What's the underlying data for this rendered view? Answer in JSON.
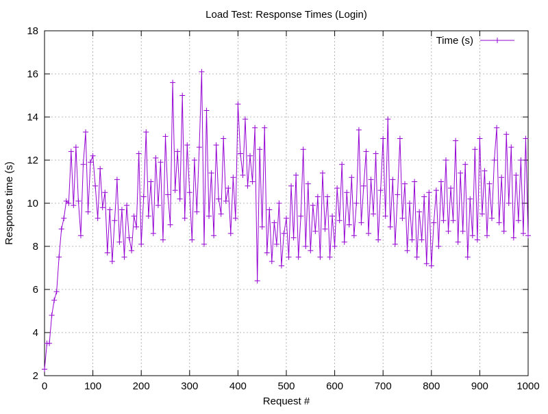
{
  "chart_data": {
    "type": "line",
    "title": "Load Test: Response Times (Login)",
    "x_label": "Request #",
    "y_label": "Response time (s)",
    "xlim": [
      0,
      1000
    ],
    "xticks": [
      0,
      100,
      200,
      300,
      400,
      500,
      600,
      700,
      800,
      900,
      1000
    ],
    "ylim": [
      2,
      18
    ],
    "yticks": [
      2,
      4,
      6,
      8,
      10,
      12,
      14,
      16,
      18
    ],
    "grid": true,
    "legend": "top right",
    "x": [
      0,
      5,
      10,
      15,
      20,
      25,
      30,
      35,
      40,
      45,
      50,
      55,
      60,
      65,
      70,
      75,
      80,
      85,
      90,
      95,
      100,
      105,
      110,
      115,
      120,
      125,
      130,
      135,
      140,
      145,
      150,
      155,
      160,
      165,
      170,
      175,
      180,
      185,
      190,
      195,
      200,
      205,
      210,
      215,
      220,
      225,
      230,
      235,
      240,
      245,
      250,
      255,
      260,
      265,
      270,
      275,
      280,
      285,
      290,
      295,
      300,
      305,
      310,
      315,
      320,
      325,
      330,
      335,
      340,
      345,
      350,
      355,
      360,
      365,
      370,
      375,
      380,
      385,
      390,
      395,
      400,
      405,
      410,
      415,
      420,
      425,
      430,
      435,
      440,
      445,
      450,
      455,
      460,
      465,
      470,
      475,
      480,
      485,
      490,
      495,
      500,
      505,
      510,
      515,
      520,
      525,
      530,
      535,
      540,
      545,
      550,
      555,
      560,
      565,
      570,
      575,
      580,
      585,
      590,
      595,
      600,
      605,
      610,
      615,
      620,
      625,
      630,
      635,
      640,
      645,
      650,
      655,
      660,
      665,
      670,
      675,
      680,
      685,
      690,
      695,
      700,
      705,
      710,
      715,
      720,
      725,
      730,
      735,
      740,
      745,
      750,
      755,
      760,
      765,
      770,
      775,
      780,
      785,
      790,
      795,
      800,
      805,
      810,
      815,
      820,
      825,
      830,
      835,
      840,
      845,
      850,
      855,
      860,
      865,
      870,
      875,
      880,
      885,
      890,
      895,
      900,
      905,
      910,
      915,
      920,
      925,
      930,
      935,
      940,
      945,
      950,
      955,
      960,
      965,
      970,
      975,
      980,
      985,
      990,
      995,
      1000
    ],
    "series": [
      {
        "name": "Time (s)",
        "color": "#9400d3",
        "values": [
          2.3,
          3.5,
          3.5,
          4.8,
          5.5,
          5.9,
          7.5,
          8.8,
          9.3,
          10.1,
          10.0,
          12.4,
          9.9,
          12.6,
          10.1,
          8.5,
          11.8,
          13.3,
          9.6,
          11.9,
          12.2,
          10.8,
          9.3,
          11.6,
          9.8,
          10.5,
          7.7,
          9.7,
          7.3,
          9.2,
          11.1,
          8.2,
          9.7,
          7.5,
          9.9,
          8.4,
          7.8,
          9.4,
          8.9,
          12.3,
          8.1,
          10.3,
          13.3,
          9.4,
          11.0,
          8.6,
          12.1,
          9.9,
          11.9,
          8.3,
          13.1,
          10.4,
          9.0,
          15.6,
          10.6,
          12.4,
          10.2,
          15.0,
          9.3,
          12.7,
          10.5,
          8.3,
          12.0,
          9.6,
          12.6,
          16.1,
          8.1,
          14.3,
          9.4,
          11.4,
          8.5,
          12.7,
          10.2,
          9.5,
          13.0,
          10.1,
          10.7,
          8.6,
          11.2,
          9.3,
          14.6,
          12.3,
          11.3,
          13.9,
          10.8,
          12.2,
          11.0,
          13.5,
          6.4,
          12.5,
          8.9,
          13.5,
          7.7,
          9.7,
          7.3,
          9.1,
          8.1,
          10.0,
          7.1,
          8.6,
          9.3,
          7.5,
          10.8,
          8.4,
          11.3,
          7.5,
          9.4,
          12.5,
          8.0,
          10.9,
          7.8,
          9.9,
          8.7,
          10.3,
          7.5,
          11.4,
          8.8,
          10.3,
          7.5,
          9.4,
          8.0,
          10.7,
          9.2,
          11.8,
          8.2,
          10.5,
          9.0,
          11.2,
          8.5,
          10.0,
          13.4,
          9.1,
          10.8,
          12.4,
          8.6,
          11.1,
          9.5,
          12.3,
          8.3,
          10.6,
          13.0,
          9.4,
          13.9,
          8.9,
          11.1,
          8.1,
          10.4,
          13.0,
          9.3,
          10.9,
          7.8,
          10.0,
          8.3,
          11.0,
          7.5,
          9.6,
          8.3,
          10.3,
          7.2,
          10.5,
          7.1,
          9.1,
          10.6,
          8.0,
          11.0,
          9.2,
          12.0,
          8.7,
          10.7,
          9.2,
          12.9,
          8.2,
          11.4,
          8.7,
          11.8,
          7.5,
          10.2,
          8.5,
          12.5,
          8.3,
          13.0,
          9.5,
          11.5,
          8.5,
          10.9,
          9.3,
          12.0,
          13.5,
          9.1,
          11.2,
          8.7,
          13.2,
          10.0,
          12.6,
          8.4,
          11.3,
          9.2,
          12.0,
          8.6,
          13.0,
          8.5
        ]
      }
    ]
  }
}
